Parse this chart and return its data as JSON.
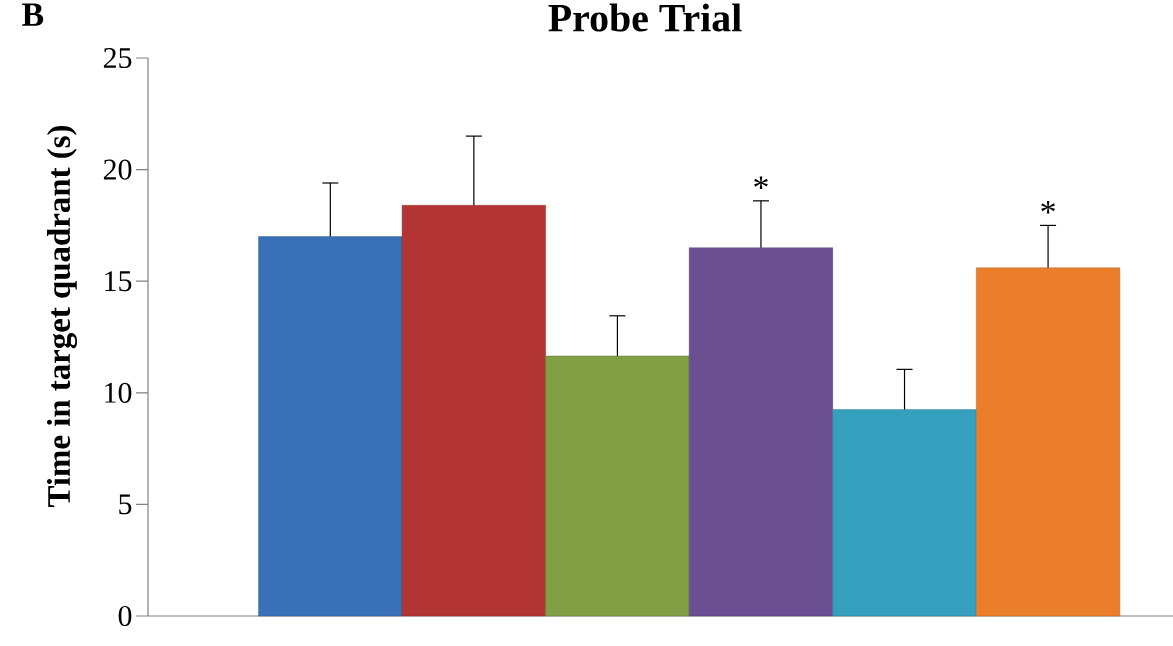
{
  "chart_data": {
    "type": "bar",
    "title": "Probe Trial",
    "ylabel": "Time in target quadrant (s)",
    "annotations": [
      "B"
    ],
    "categories": [
      null,
      null,
      null,
      null,
      null,
      null
    ],
    "values": [
      17.0,
      18.4,
      11.65,
      16.5,
      9.25,
      15.6
    ],
    "errors": [
      2.4,
      3.1,
      1.8,
      2.1,
      1.8,
      1.9
    ],
    "value_labels": [
      null,
      null,
      null,
      "*",
      null,
      "*"
    ],
    "colors": [
      "#3a70b8",
      "#b33533",
      "#80a043",
      "#6c4f92",
      "#35a0be",
      "#ea7e2a"
    ],
    "ylim": [
      0,
      25
    ],
    "yticks": [
      0,
      5,
      10,
      15,
      20,
      25
    ]
  }
}
